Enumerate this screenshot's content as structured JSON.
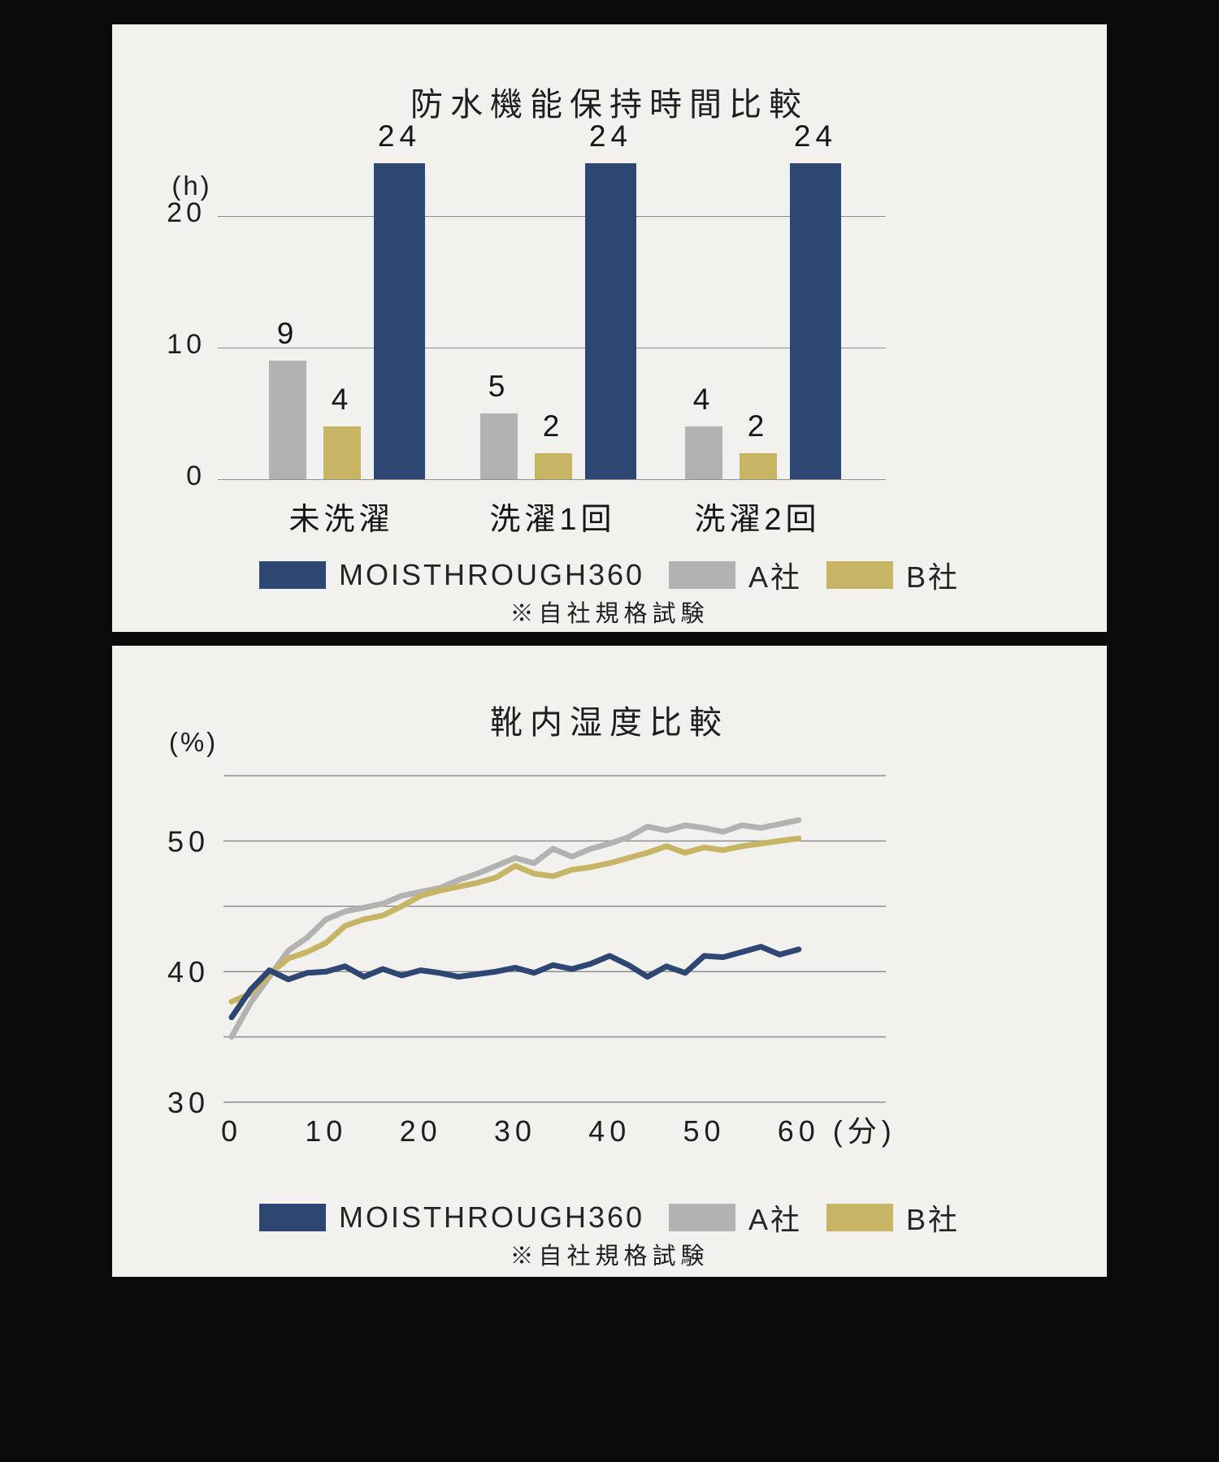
{
  "page": {
    "background_color": "#0b0b0b",
    "card_background_color": "#f2f1ee"
  },
  "colors": {
    "navy": "#2e4672",
    "gray": "#b2b2b2",
    "gold": "#c7b565",
    "grid": "#8f8f8f",
    "text": "#1e1e1e"
  },
  "chart_data": [
    {
      "type": "bar",
      "title": "防水機能保持時間比較",
      "ylabel": "(h)",
      "ylim": [
        0,
        26
      ],
      "y_ticks": [
        0,
        10,
        20
      ],
      "grid": true,
      "categories": [
        "未洗濯",
        "洗濯1回",
        "洗濯2回"
      ],
      "series": [
        {
          "name": "A社",
          "color": "#b2b2b2",
          "values": [
            9,
            5,
            4
          ]
        },
        {
          "name": "B社",
          "color": "#c7b565",
          "values": [
            4,
            2,
            2
          ]
        },
        {
          "name": "MOISTHROUGH360",
          "color": "#2e4672",
          "values": [
            24,
            24,
            24
          ]
        }
      ],
      "legend": [
        {
          "label": "MOISTHROUGH360",
          "color": "#2e4672"
        },
        {
          "label": "A社",
          "color": "#b2b2b2"
        },
        {
          "label": "B社",
          "color": "#c7b565"
        }
      ],
      "legend_position": "bottom",
      "footnote": "※自社規格試験"
    },
    {
      "type": "line",
      "title": "靴内湿度比較",
      "ylabel": "(%)",
      "x_unit": "(分)",
      "ylim": [
        30,
        55
      ],
      "y_ticks": [
        30,
        40,
        50
      ],
      "gridlines_y": [
        30,
        35,
        40,
        45,
        50,
        55
      ],
      "x_ticks": [
        0,
        10,
        20,
        30,
        40,
        50,
        60
      ],
      "grid": true,
      "x": [
        0,
        2,
        4,
        6,
        8,
        10,
        12,
        14,
        16,
        18,
        20,
        22,
        24,
        26,
        28,
        30,
        32,
        34,
        36,
        38,
        40,
        42,
        44,
        46,
        48,
        50,
        52,
        54,
        56,
        58,
        60
      ],
      "series": [
        {
          "name": "A社",
          "color": "#b2b2b2",
          "values": [
            35.0,
            37.6,
            39.6,
            41.6,
            42.6,
            44.0,
            44.6,
            44.9,
            45.2,
            45.8,
            46.1,
            46.4,
            47.0,
            47.5,
            48.1,
            48.7,
            48.3,
            49.4,
            48.8,
            49.4,
            49.8,
            50.3,
            51.1,
            50.8,
            51.2,
            51.0,
            50.7,
            51.2,
            51.0,
            51.3,
            51.6
          ]
        },
        {
          "name": "B社",
          "color": "#c7b565",
          "values": [
            37.7,
            38.3,
            39.8,
            41.0,
            41.5,
            42.2,
            43.5,
            44.0,
            44.3,
            45.0,
            45.8,
            46.2,
            46.5,
            46.8,
            47.2,
            48.1,
            47.5,
            47.3,
            47.8,
            48.0,
            48.3,
            48.7,
            49.1,
            49.6,
            49.1,
            49.5,
            49.3,
            49.6,
            49.8,
            50.0,
            50.2
          ]
        },
        {
          "name": "MOISTHROUGH360",
          "color": "#2e4672",
          "values": [
            36.5,
            38.6,
            40.1,
            39.4,
            39.9,
            40.0,
            40.4,
            39.6,
            40.2,
            39.7,
            40.1,
            39.9,
            39.6,
            39.8,
            40.0,
            40.3,
            39.9,
            40.5,
            40.2,
            40.6,
            41.2,
            40.5,
            39.6,
            40.4,
            39.9,
            41.2,
            41.1,
            41.5,
            41.9,
            41.3,
            41.7
          ]
        }
      ],
      "legend": [
        {
          "label": "MOISTHROUGH360",
          "color": "#2e4672"
        },
        {
          "label": "A社",
          "color": "#b2b2b2"
        },
        {
          "label": "B社",
          "color": "#c7b565"
        }
      ],
      "legend_position": "bottom",
      "footnote": "※自社規格試験"
    }
  ]
}
